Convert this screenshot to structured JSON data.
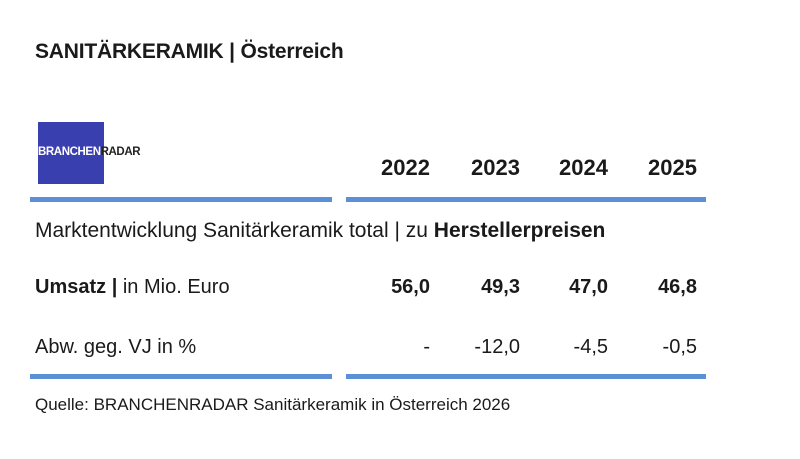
{
  "title": "SANITÄRKERAMIK | Österreich",
  "logo": {
    "part1": "BRANCHEN",
    "part2": "RADAR"
  },
  "colors": {
    "accent_bar": "#5b8fd6",
    "logo_bg": "#3a3fb0"
  },
  "chart_data": {
    "type": "table",
    "section_label": "Marktentwicklung Sanitärkeramik total | zu",
    "section_bold": "Herstellerpreisen",
    "columns": [
      "2022",
      "2023",
      "2024",
      "2025"
    ],
    "rows": [
      {
        "label_bold": "Umsatz |",
        "label_rest": " in Mio. Euro",
        "values": [
          "56,0",
          "49,3",
          "47,0",
          "46,8"
        ],
        "bold": true
      },
      {
        "label_bold": "",
        "label_rest": "Abw. geg. VJ in %",
        "values": [
          "-",
          "-12,0",
          "-4,5",
          "-0,5"
        ],
        "bold": false
      }
    ]
  },
  "source": "Quelle: BRANCHENRADAR Sanitärkeramik in Österreich 2026"
}
